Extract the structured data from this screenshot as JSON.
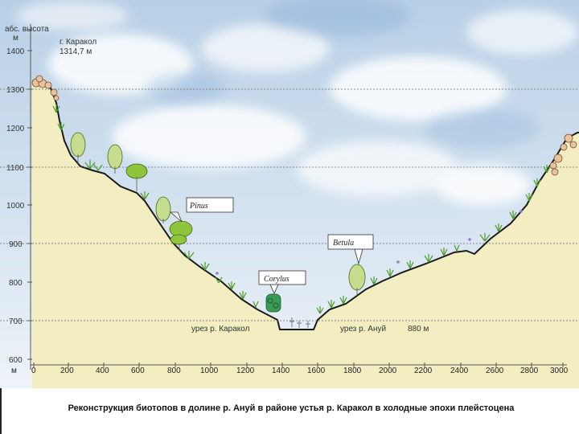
{
  "axis": {
    "y_title_line1": "абс. высота",
    "y_title_line2": "м",
    "x_unit": "м",
    "y_ticks": [
      "1400",
      "1300",
      "1200",
      "1100",
      "1000",
      "900",
      "800",
      "700",
      "600"
    ],
    "x_ticks": [
      "0",
      "200",
      "400",
      "600",
      "800",
      "1000",
      "1200",
      "1400",
      "1600",
      "1800",
      "2000",
      "2200",
      "2400",
      "2600",
      "2800",
      "3000"
    ]
  },
  "annotations": {
    "peak_name": "г. Каракол",
    "peak_height": "1314,7 м",
    "left_level": "урез р. Каракол",
    "right_level": "урез р. Ануй",
    "level_value": "880 м"
  },
  "taxa": {
    "pinus": "Pinus",
    "betula": "Betula",
    "corylus": "Corylus"
  },
  "caption": "Реконструкция биотопов в долине р. Ануй в районе устья р. Каракол в холодные эпохи плейстоцена",
  "colors": {
    "ground": "#f2eec2",
    "slope_line": "#1a1a1a",
    "sky_blue": "#9fc0de",
    "birch": "#c6dc8e",
    "pine": "#8fc43d",
    "shrub": "#3a9b55",
    "rock": "#e9c3a0"
  }
}
